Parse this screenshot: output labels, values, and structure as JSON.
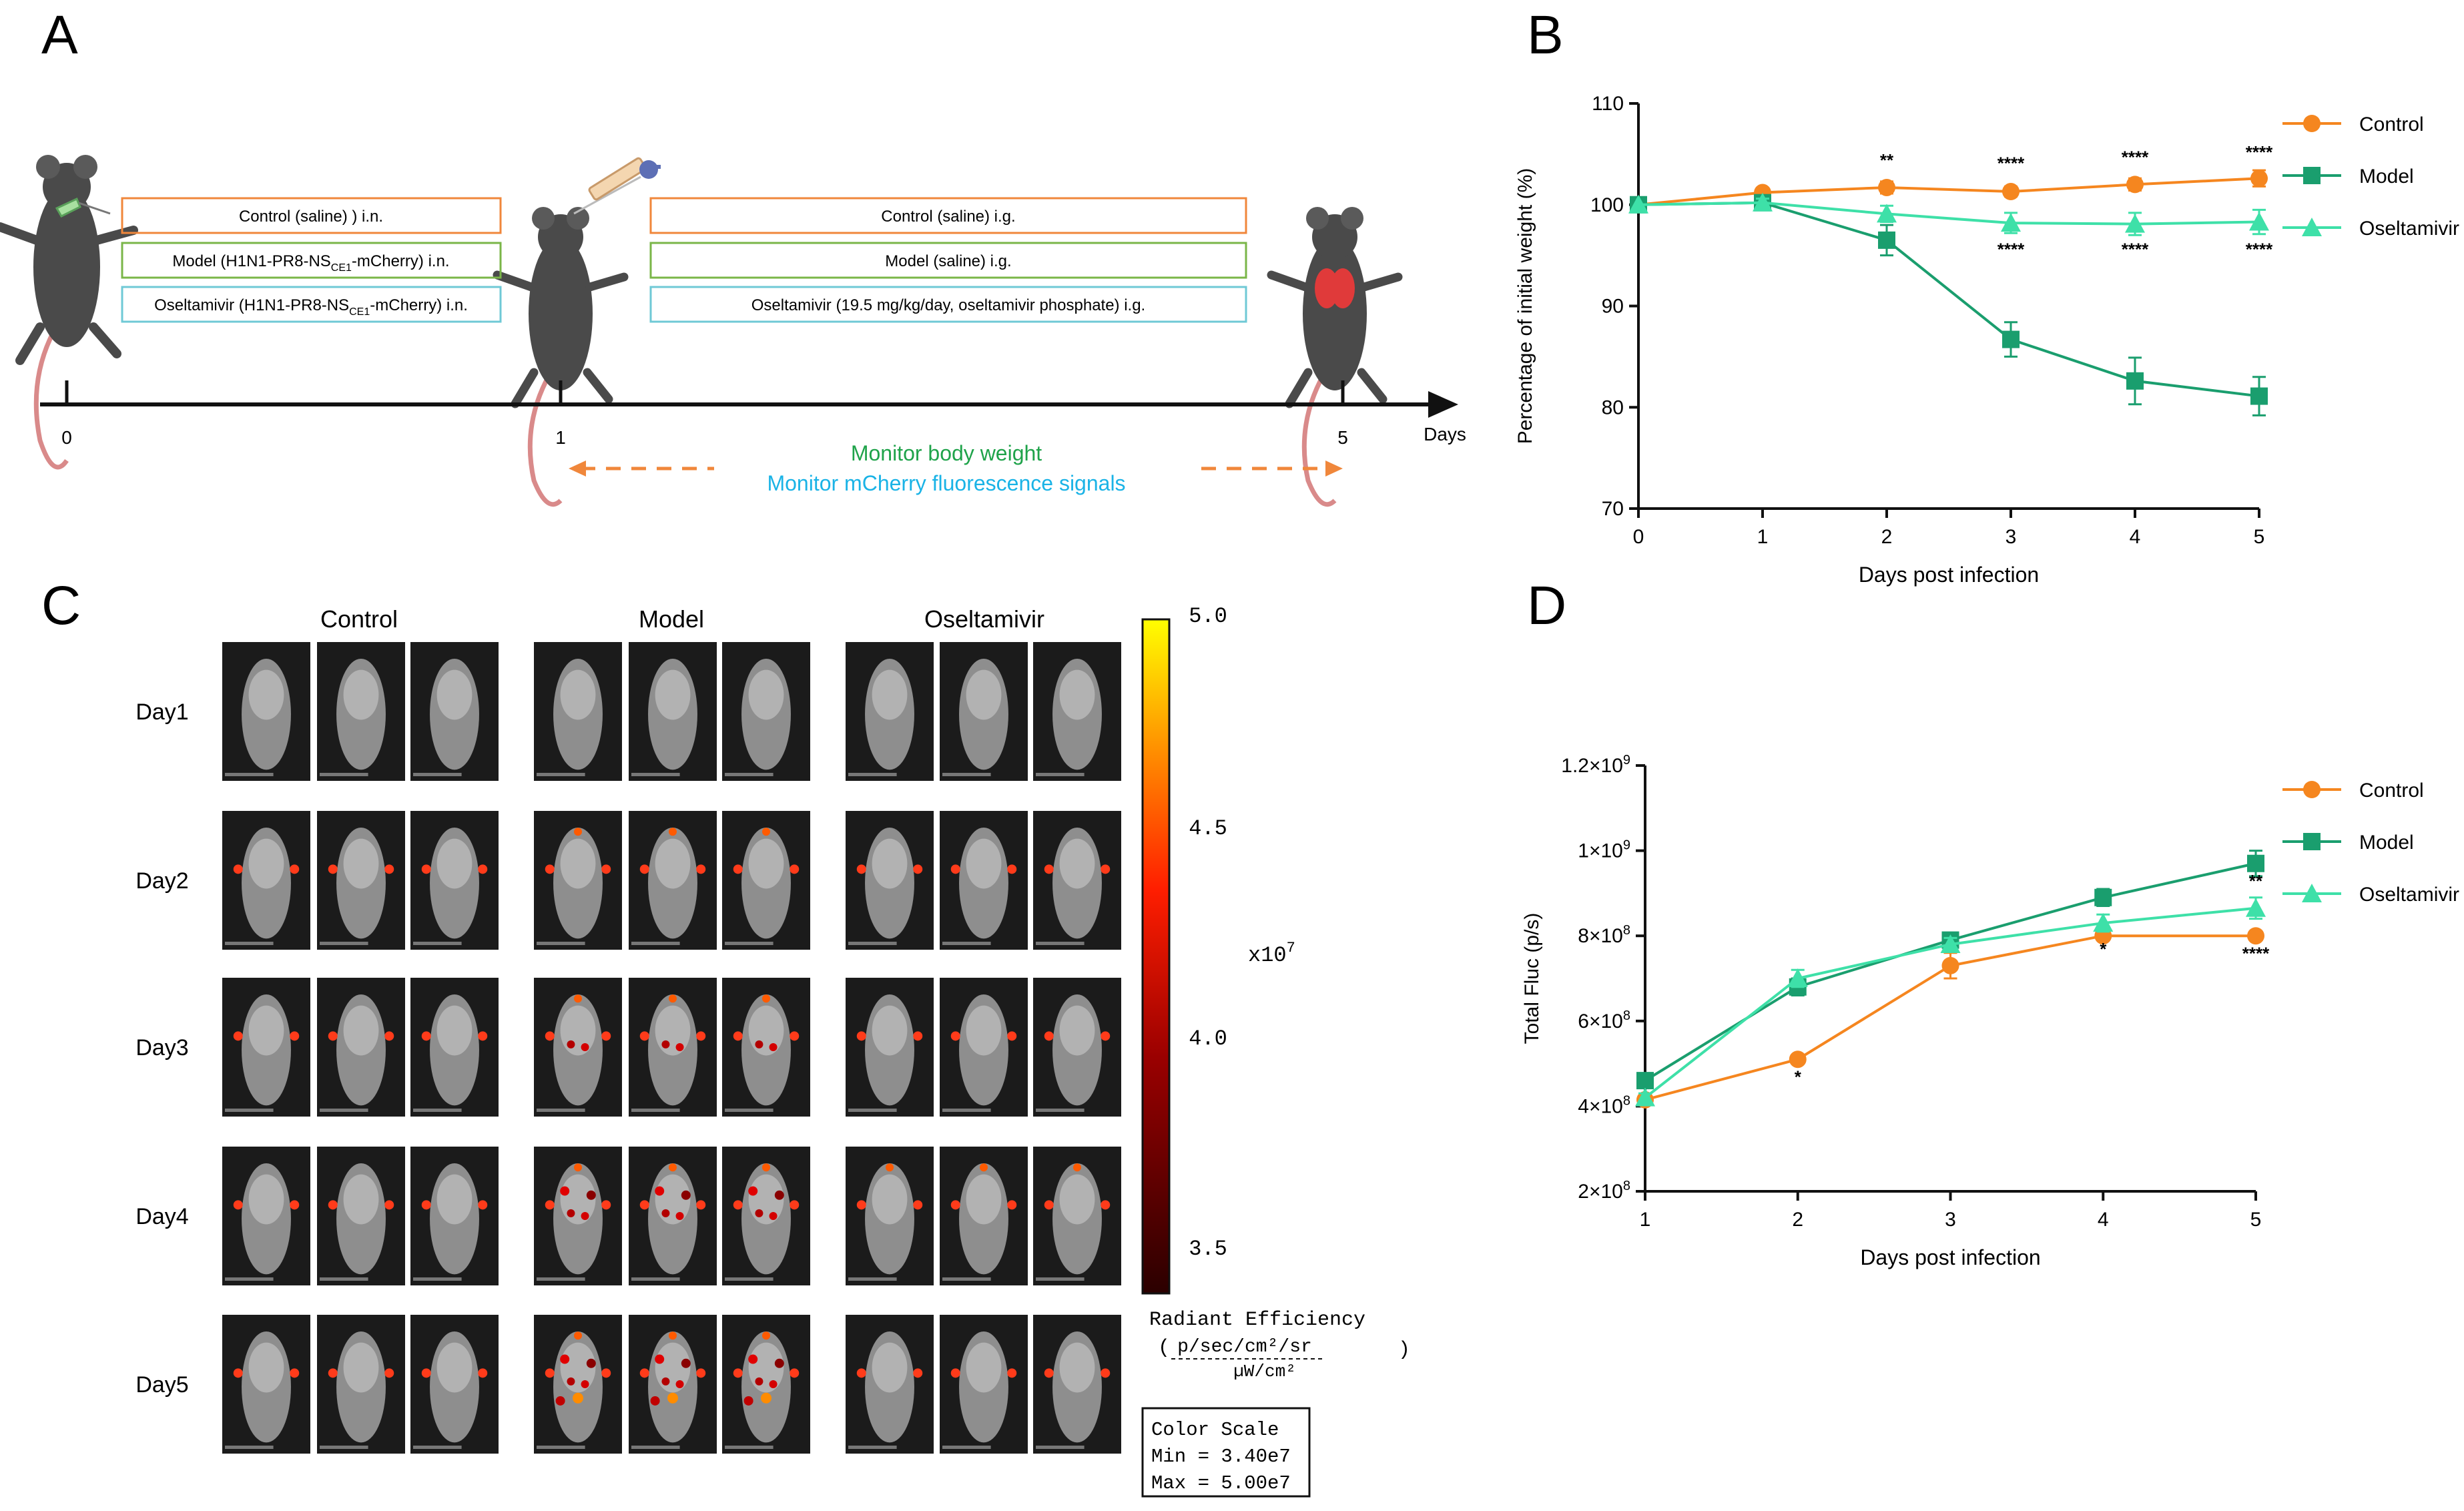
{
  "panels": {
    "a": {
      "label": "A",
      "timeline": {
        "ticks": [
          "0",
          "1",
          "5"
        ],
        "unit": "Days",
        "monitor_weight": "Monitor body weight",
        "monitor_fluor": "Monitor mCherry fluorescence signals"
      },
      "boxes_left": [
        {
          "pre": "Control (saline) ) i.n.",
          "sub": "",
          "post": "",
          "color": "#f0873b"
        },
        {
          "pre": "Model (H1N1-PR8-NS",
          "sub": "CE1",
          "post": "-mCherry) i.n.",
          "color": "#7ab648"
        },
        {
          "pre": "Oseltamivir  (H1N1-PR8-NS",
          "sub": "CE1",
          "post": "-mCherry) i.n.",
          "color": "#6fc9d6"
        }
      ],
      "boxes_right": [
        {
          "text": "Control (saline) i.g.",
          "color": "#f0873b"
        },
        {
          "text": "Model (saline) i.g.",
          "color": "#7ab648"
        },
        {
          "text": "Oseltamivir (19.5 mg/kg/day, oseltamivir phosphate) i.g.",
          "color": "#6fc9d6"
        }
      ],
      "colors": {
        "weight": "#1fa34a",
        "fluor": "#1ab3e6",
        "arrow": "#f0873b"
      }
    },
    "b": {
      "label": "B"
    },
    "c": {
      "label": "C",
      "groups": [
        "Control",
        "Model",
        "Oseltamivir"
      ],
      "days": [
        "Day1",
        "Day2",
        "Day3",
        "Day4",
        "Day5"
      ],
      "colorbar": {
        "ticks": [
          "5.0",
          "4.5",
          "4.0",
          "3.5"
        ],
        "multiplier": "x10",
        "exponent": "7",
        "unit_title": "Radiant Efficiency",
        "unit_numerator": "p/sec/cm²/sr",
        "unit_denominator": "µW/cm²",
        "scale_title": "Color Scale",
        "scale_min": "Min = 3.40e7",
        "scale_max": "Max = 5.00e7"
      },
      "signal_level": {
        "Control": [
          0,
          1,
          1,
          1,
          1
        ],
        "Model": [
          0,
          2,
          3,
          4,
          5
        ],
        "Oseltamivir": [
          0,
          1,
          1,
          2,
          1
        ]
      }
    },
    "d": {
      "label": "D"
    }
  },
  "chart_data": [
    {
      "type": "line",
      "panel": "B",
      "xlabel": "Days post infection",
      "ylabel": "Percentage of initial weight (%)",
      "x": [
        0,
        1,
        2,
        3,
        4,
        5
      ],
      "xlim": [
        0,
        5
      ],
      "ylim": [
        70,
        110
      ],
      "yticks": [
        70,
        80,
        90,
        100,
        110
      ],
      "legend_position": "top-right",
      "series": [
        {
          "name": "Control",
          "marker": "circle",
          "color": "#f5861f",
          "values": [
            100,
            101.2,
            101.7,
            101.3,
            102,
            102.6
          ],
          "err": [
            0,
            0.4,
            0.6,
            0.5,
            0.6,
            0.8
          ]
        },
        {
          "name": "Model",
          "marker": "square",
          "color": "#1a9e6e",
          "values": [
            100,
            100.2,
            96.5,
            86.7,
            82.6,
            81.1
          ],
          "err": [
            0,
            0.4,
            1.5,
            1.7,
            2.3,
            1.9
          ]
        },
        {
          "name": "Oseltamivir",
          "marker": "triangle",
          "color": "#3ee0a8",
          "values": [
            100,
            100.2,
            99.1,
            98.2,
            98.1,
            98.3
          ],
          "err": [
            0,
            0.4,
            0.8,
            1.0,
            1.1,
            1.2
          ]
        }
      ],
      "annotations": [
        {
          "x": 2,
          "y": 103.8,
          "text": "**"
        },
        {
          "x": 3,
          "y": 103.5,
          "text": "****"
        },
        {
          "x": 4,
          "y": 104.1,
          "text": "****"
        },
        {
          "x": 5,
          "y": 104.6,
          "text": "****"
        },
        {
          "x": 3,
          "y": 95.0,
          "text": "****"
        },
        {
          "x": 4,
          "y": 95.0,
          "text": "****"
        },
        {
          "x": 5,
          "y": 95.0,
          "text": "****"
        }
      ]
    },
    {
      "type": "line",
      "panel": "D",
      "xlabel": "Days post infection",
      "ylabel": "Total Fluc (p/s)",
      "x": [
        1,
        2,
        3,
        4,
        5
      ],
      "xlim": [
        1,
        5
      ],
      "ylim": [
        200000000,
        1200000000
      ],
      "yticks": [
        {
          "value": 200000000,
          "mant": "2×10",
          "exp": "8"
        },
        {
          "value": 400000000,
          "mant": "4×10",
          "exp": "8"
        },
        {
          "value": 600000000,
          "mant": "6×10",
          "exp": "8"
        },
        {
          "value": 800000000,
          "mant": "8×10",
          "exp": "8"
        },
        {
          "value": 1000000000,
          "mant": "1×10",
          "exp": "9"
        },
        {
          "value": 1200000000,
          "mant": "1.2×10",
          "exp": "9"
        }
      ],
      "legend_position": "top-right",
      "series": [
        {
          "name": "Control",
          "marker": "circle",
          "color": "#f5861f",
          "values": [
            415000000,
            510000000,
            730000000,
            800000000,
            800000000
          ],
          "err": [
            10000000,
            10000000,
            30000000,
            10000000,
            0
          ]
        },
        {
          "name": "Model",
          "marker": "square",
          "color": "#1a9e6e",
          "values": [
            460000000,
            680000000,
            790000000,
            890000000,
            970000000
          ],
          "err": [
            10000000,
            20000000,
            15000000,
            20000000,
            30000000
          ]
        },
        {
          "name": "Oseltamivir",
          "marker": "triangle",
          "color": "#3ee0a8",
          "values": [
            420000000,
            700000000,
            780000000,
            830000000,
            865000000
          ],
          "err": [
            10000000,
            20000000,
            15000000,
            20000000,
            25000000
          ]
        }
      ],
      "annotations": [
        {
          "x": 2,
          "y": 455000000,
          "text": "*"
        },
        {
          "x": 4,
          "y": 755000000,
          "text": "*"
        },
        {
          "x": 5,
          "y": 915000000,
          "text": "**"
        },
        {
          "x": 5,
          "y": 745000000,
          "text": "****"
        }
      ]
    }
  ]
}
